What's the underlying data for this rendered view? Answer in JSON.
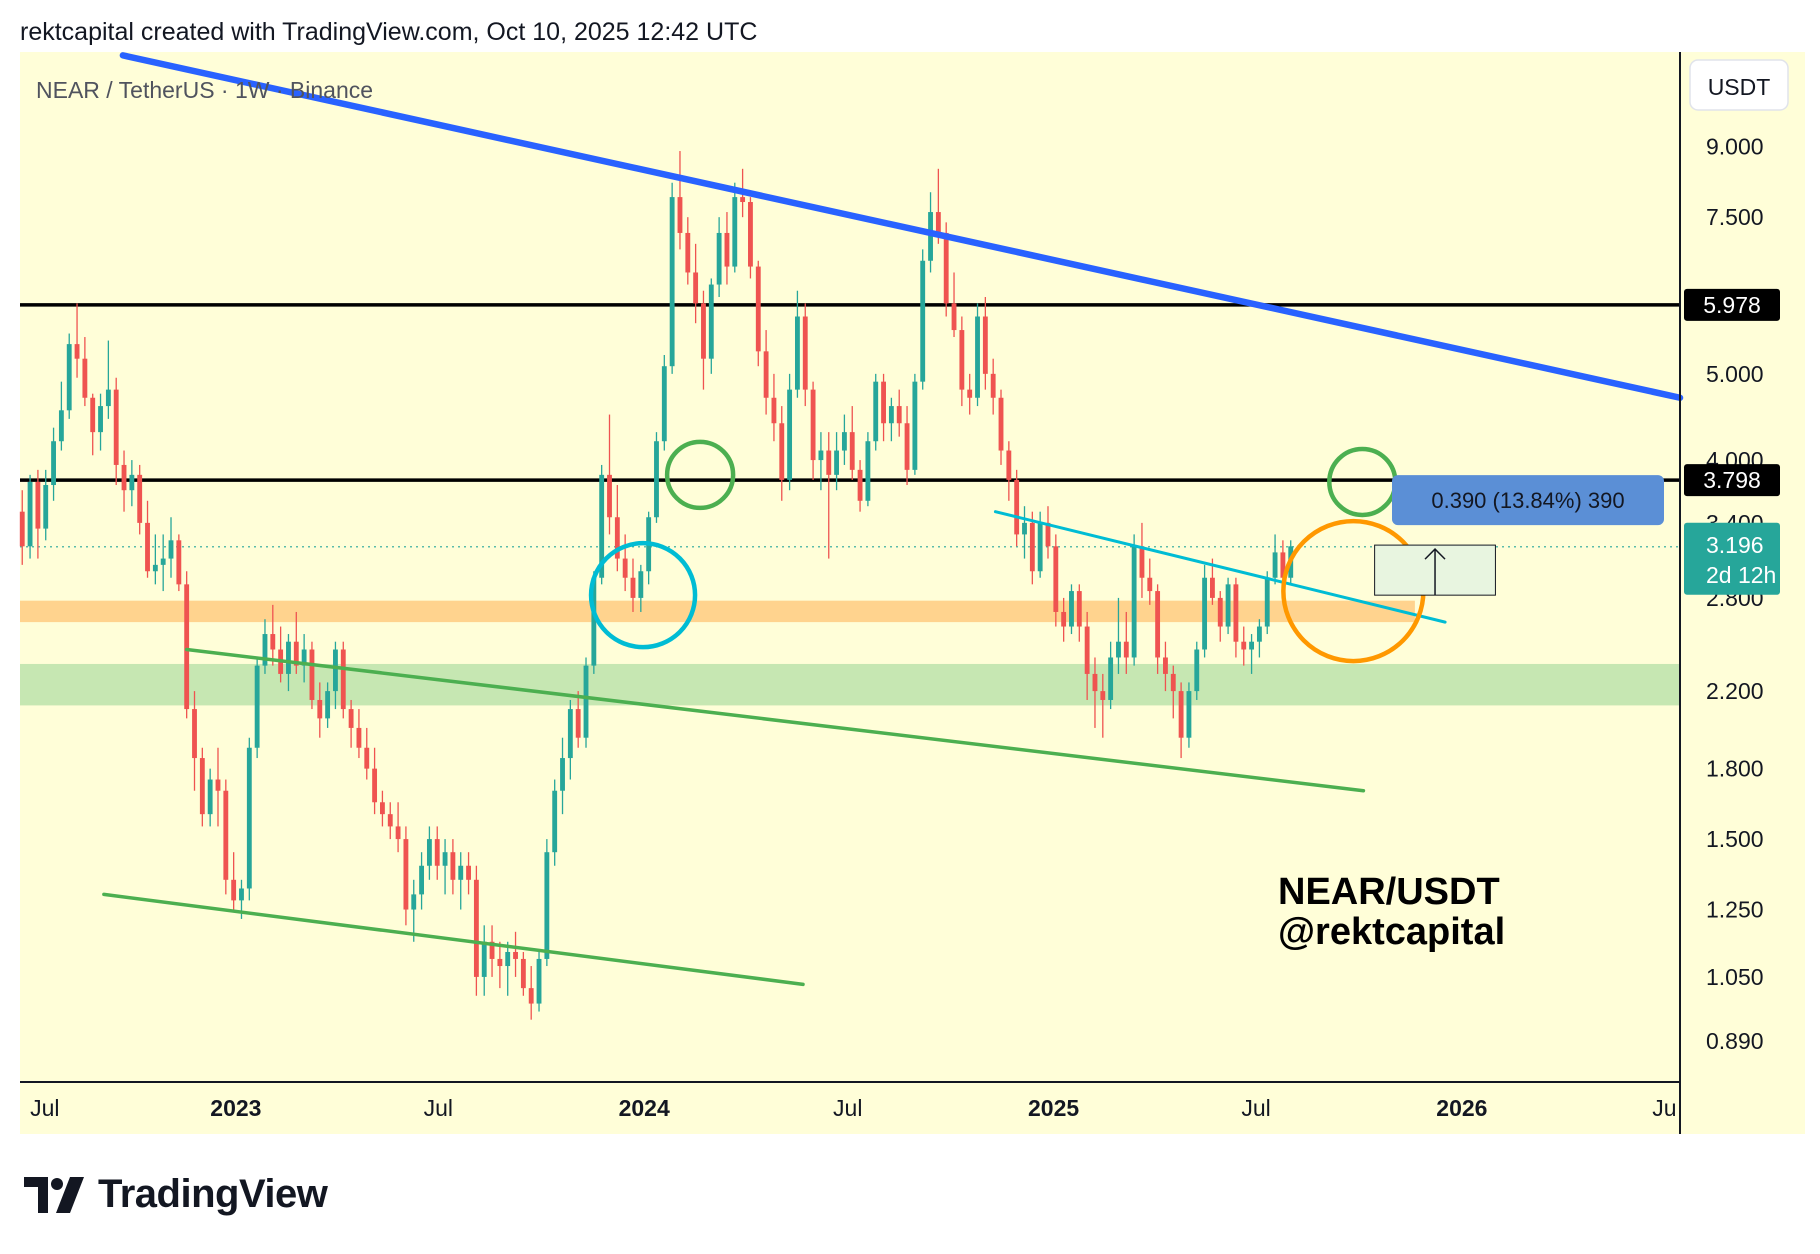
{
  "header": {
    "attribution": "rektcapital created with TradingView.com, Oct 10, 2025 12:42 UTC"
  },
  "footer": {
    "brand": "TradingView"
  },
  "colors": {
    "background": "#fffed8",
    "up_candle": "#26a69a",
    "down_candle": "#ef5350",
    "upper_trendline": "#2962ff",
    "lower_channel": "#4caf50",
    "cyan_trendline": "#00bcd4",
    "orange_zone": "#ffd18a",
    "green_zone": "#c3e6b0",
    "circle_cyan": "#00bcd4",
    "circle_green": "#4caf50",
    "circle_orange": "#ff9800",
    "measure_label": "#5b8fd6",
    "price_badge": "#26a69a"
  },
  "chart_data": {
    "type": "candlestick",
    "symbol_label": "NEAR / TetherUS · 1W · Binance",
    "currency_label": "USDT",
    "watermark": [
      "NEAR/USDT",
      "@rektcapital"
    ],
    "y_scale": "log",
    "ylim": [
      0.8,
      11.5
    ],
    "y_ticks": [
      "9.000",
      "7.500",
      "5.000",
      "4.000",
      "3.400",
      "2.800",
      "2.200",
      "1.800",
      "1.500",
      "1.250",
      "1.050",
      "0.890"
    ],
    "x_ticks": [
      "Jul",
      "2023",
      "Jul",
      "2024",
      "Jul",
      "2025",
      "Jul",
      "2026",
      "Ju"
    ],
    "x_tick_dates": [
      "2022-07-01",
      "2023-01-01",
      "2023-07-01",
      "2024-01-01",
      "2024-07-01",
      "2025-01-01",
      "2025-07-01",
      "2026-01-01",
      "2026-07-01"
    ],
    "xlim": [
      "2022-06-22",
      "2026-07-15"
    ],
    "horizontal_levels": [
      {
        "value": 5.978,
        "label": "5.978"
      },
      {
        "value": 3.798,
        "label": "3.798"
      }
    ],
    "zones": [
      {
        "name": "orange",
        "from": 2.63,
        "to": 2.78,
        "x_end": "2025-11-20"
      },
      {
        "name": "green",
        "from": 2.12,
        "to": 2.36
      }
    ],
    "trendlines": [
      {
        "name": "upper-descending",
        "points": [
          [
            "2022-09-22",
            11.4
          ],
          [
            "2026-07-15",
            4.7
          ]
        ]
      },
      {
        "name": "channel-lower-1",
        "points": [
          [
            "2022-11-18",
            2.45
          ],
          [
            "2025-10-05",
            1.7
          ]
        ]
      },
      {
        "name": "channel-lower-2",
        "points": [
          [
            "2022-09-05",
            1.3
          ],
          [
            "2024-05-22",
            1.03
          ]
        ]
      },
      {
        "name": "cyan-descending",
        "points": [
          [
            "2024-11-10",
            3.5
          ],
          [
            "2025-12-17",
            2.63
          ]
        ]
      }
    ],
    "circles": [
      {
        "name": "cyan",
        "center": [
          "2023-12-31",
          2.82
        ]
      },
      {
        "name": "green-left",
        "center": [
          "2024-02-20",
          3.85
        ]
      },
      {
        "name": "green-right",
        "center": [
          "2025-10-04",
          3.78
        ]
      },
      {
        "name": "orange",
        "center": [
          "2025-09-26",
          2.85
        ]
      }
    ],
    "measure": {
      "label": "0.390 (13.84%) 390",
      "from_date": "2025-10-15",
      "to_date": "2026-01-31",
      "low": 2.82,
      "high": 3.21
    },
    "last_price": {
      "value": 3.196,
      "label": "3.196",
      "countdown": "2d 12h"
    },
    "candles_start_date": "2022-06-24",
    "candles_ohlc": [
      [
        3.5,
        3.7,
        3.05,
        3.2
      ],
      [
        3.2,
        3.85,
        3.1,
        3.78
      ],
      [
        3.78,
        3.9,
        3.1,
        3.35
      ],
      [
        3.35,
        3.9,
        3.25,
        3.75
      ],
      [
        3.75,
        4.35,
        3.6,
        4.2
      ],
      [
        4.2,
        4.9,
        4.1,
        4.55
      ],
      [
        4.55,
        5.55,
        4.45,
        5.4
      ],
      [
        5.4,
        6.0,
        4.95,
        5.2
      ],
      [
        5.2,
        5.5,
        4.6,
        4.7
      ],
      [
        4.7,
        4.75,
        4.05,
        4.3
      ],
      [
        4.3,
        4.75,
        4.1,
        4.6
      ],
      [
        4.6,
        5.45,
        4.45,
        4.8
      ],
      [
        4.8,
        4.95,
        3.75,
        3.95
      ],
      [
        3.95,
        4.1,
        3.5,
        3.7
      ],
      [
        3.7,
        4.0,
        3.55,
        3.85
      ],
      [
        3.85,
        3.95,
        3.3,
        3.4
      ],
      [
        3.4,
        3.6,
        2.95,
        3.0
      ],
      [
        3.0,
        3.3,
        2.9,
        3.05
      ],
      [
        3.05,
        3.3,
        2.85,
        3.1
      ],
      [
        3.1,
        3.45,
        2.95,
        3.25
      ],
      [
        3.25,
        3.3,
        2.85,
        2.9
      ],
      [
        2.9,
        3.0,
        2.05,
        2.1
      ],
      [
        2.1,
        2.2,
        1.7,
        1.85
      ],
      [
        1.85,
        1.9,
        1.55,
        1.6
      ],
      [
        1.6,
        1.8,
        1.55,
        1.75
      ],
      [
        1.75,
        1.9,
        1.55,
        1.7
      ],
      [
        1.7,
        1.75,
        1.3,
        1.35
      ],
      [
        1.35,
        1.45,
        1.25,
        1.28
      ],
      [
        1.28,
        1.35,
        1.22,
        1.32
      ],
      [
        1.32,
        1.95,
        1.28,
        1.9
      ],
      [
        1.9,
        2.4,
        1.85,
        2.35
      ],
      [
        2.35,
        2.65,
        2.3,
        2.55
      ],
      [
        2.55,
        2.75,
        2.35,
        2.45
      ],
      [
        2.45,
        2.6,
        2.25,
        2.3
      ],
      [
        2.3,
        2.55,
        2.2,
        2.5
      ],
      [
        2.5,
        2.7,
        2.3,
        2.35
      ],
      [
        2.35,
        2.55,
        2.25,
        2.45
      ],
      [
        2.45,
        2.5,
        2.1,
        2.15
      ],
      [
        2.15,
        2.25,
        1.95,
        2.05
      ],
      [
        2.05,
        2.25,
        2.0,
        2.2
      ],
      [
        2.2,
        2.5,
        2.1,
        2.45
      ],
      [
        2.45,
        2.5,
        2.05,
        2.1
      ],
      [
        2.1,
        2.15,
        1.9,
        2.0
      ],
      [
        2.0,
        2.1,
        1.85,
        1.9
      ],
      [
        1.9,
        2.0,
        1.75,
        1.8
      ],
      [
        1.8,
        1.9,
        1.6,
        1.65
      ],
      [
        1.65,
        1.7,
        1.55,
        1.6
      ],
      [
        1.6,
        1.65,
        1.5,
        1.55
      ],
      [
        1.55,
        1.65,
        1.45,
        1.5
      ],
      [
        1.5,
        1.55,
        1.2,
        1.25
      ],
      [
        1.25,
        1.35,
        1.15,
        1.3
      ],
      [
        1.3,
        1.45,
        1.25,
        1.4
      ],
      [
        1.4,
        1.55,
        1.35,
        1.5
      ],
      [
        1.5,
        1.55,
        1.35,
        1.4
      ],
      [
        1.4,
        1.5,
        1.3,
        1.45
      ],
      [
        1.45,
        1.5,
        1.3,
        1.35
      ],
      [
        1.35,
        1.45,
        1.25,
        1.4
      ],
      [
        1.4,
        1.45,
        1.3,
        1.35
      ],
      [
        1.35,
        1.4,
        1.0,
        1.05
      ],
      [
        1.05,
        1.2,
        1.0,
        1.15
      ],
      [
        1.15,
        1.2,
        1.05,
        1.1
      ],
      [
        1.1,
        1.15,
        1.02,
        1.08
      ],
      [
        1.08,
        1.15,
        1.0,
        1.12
      ],
      [
        1.12,
        1.18,
        1.05,
        1.1
      ],
      [
        1.1,
        1.12,
        1.0,
        1.02
      ],
      [
        1.02,
        1.08,
        0.94,
        0.98
      ],
      [
        0.98,
        1.12,
        0.96,
        1.1
      ],
      [
        1.1,
        1.5,
        1.08,
        1.45
      ],
      [
        1.45,
        1.75,
        1.4,
        1.7
      ],
      [
        1.7,
        1.95,
        1.6,
        1.85
      ],
      [
        1.85,
        2.15,
        1.75,
        2.1
      ],
      [
        2.1,
        2.2,
        1.9,
        1.95
      ],
      [
        1.95,
        2.4,
        1.9,
        2.35
      ],
      [
        2.35,
        3.0,
        2.3,
        2.95
      ],
      [
        2.95,
        3.95,
        2.9,
        3.85
      ],
      [
        3.85,
        4.5,
        3.3,
        3.45
      ],
      [
        3.45,
        3.75,
        3.0,
        3.1
      ],
      [
        3.1,
        3.3,
        2.85,
        2.95
      ],
      [
        2.95,
        3.1,
        2.7,
        2.8
      ],
      [
        2.8,
        3.05,
        2.7,
        3.0
      ],
      [
        3.0,
        3.5,
        2.9,
        3.45
      ],
      [
        3.45,
        4.3,
        3.4,
        4.2
      ],
      [
        4.2,
        5.25,
        4.1,
        5.1
      ],
      [
        5.1,
        8.2,
        5.0,
        7.9
      ],
      [
        7.9,
        8.9,
        6.9,
        7.2
      ],
      [
        7.2,
        7.5,
        6.3,
        6.5
      ],
      [
        6.5,
        7.0,
        5.7,
        6.0
      ],
      [
        6.0,
        6.2,
        4.8,
        5.2
      ],
      [
        5.2,
        6.4,
        5.0,
        6.3
      ],
      [
        6.3,
        7.5,
        6.1,
        7.2
      ],
      [
        7.2,
        7.6,
        6.3,
        6.6
      ],
      [
        6.6,
        8.2,
        6.5,
        7.9
      ],
      [
        7.9,
        8.5,
        7.5,
        7.8
      ],
      [
        7.8,
        7.9,
        6.4,
        6.6
      ],
      [
        6.6,
        6.7,
        5.1,
        5.3
      ],
      [
        5.3,
        5.6,
        4.5,
        4.7
      ],
      [
        4.7,
        5.0,
        4.2,
        4.4
      ],
      [
        4.4,
        4.6,
        3.6,
        3.8
      ],
      [
        3.8,
        5.0,
        3.7,
        4.8
      ],
      [
        4.8,
        6.2,
        4.7,
        5.8
      ],
      [
        5.8,
        6.0,
        4.6,
        4.8
      ],
      [
        4.8,
        4.9,
        3.8,
        4.0
      ],
      [
        4.0,
        4.3,
        3.7,
        4.1
      ],
      [
        4.1,
        4.3,
        3.1,
        3.85
      ],
      [
        3.85,
        4.3,
        3.7,
        4.1
      ],
      [
        4.1,
        4.5,
        3.95,
        4.3
      ],
      [
        4.3,
        4.6,
        3.8,
        3.9
      ],
      [
        3.9,
        4.0,
        3.5,
        3.6
      ],
      [
        3.6,
        4.3,
        3.55,
        4.2
      ],
      [
        4.2,
        5.0,
        4.1,
        4.9
      ],
      [
        4.9,
        5.0,
        4.2,
        4.4
      ],
      [
        4.4,
        4.7,
        4.2,
        4.6
      ],
      [
        4.6,
        4.8,
        4.25,
        4.4
      ],
      [
        4.4,
        4.6,
        3.75,
        3.9
      ],
      [
        3.9,
        5.0,
        3.85,
        4.9
      ],
      [
        4.9,
        6.9,
        4.8,
        6.7
      ],
      [
        6.7,
        8.0,
        6.5,
        7.6
      ],
      [
        7.6,
        8.5,
        7.0,
        7.2
      ],
      [
        7.2,
        7.4,
        5.8,
        6.0
      ],
      [
        6.0,
        6.5,
        5.5,
        5.6
      ],
      [
        5.6,
        5.8,
        4.6,
        4.8
      ],
      [
        4.8,
        5.0,
        4.5,
        4.7
      ],
      [
        4.7,
        6.0,
        4.6,
        5.8
      ],
      [
        5.8,
        6.1,
        4.8,
        5.0
      ],
      [
        5.0,
        5.2,
        4.5,
        4.7
      ],
      [
        4.7,
        4.8,
        3.95,
        4.1
      ],
      [
        4.1,
        4.2,
        3.6,
        3.8
      ],
      [
        3.8,
        3.9,
        3.2,
        3.3
      ],
      [
        3.3,
        3.55,
        3.1,
        3.4
      ],
      [
        3.4,
        3.5,
        2.9,
        3.0
      ],
      [
        3.0,
        3.5,
        2.95,
        3.4
      ],
      [
        3.4,
        3.55,
        3.1,
        3.2
      ],
      [
        3.2,
        3.3,
        2.6,
        2.7
      ],
      [
        2.7,
        2.8,
        2.5,
        2.6
      ],
      [
        2.6,
        2.9,
        2.55,
        2.85
      ],
      [
        2.85,
        2.9,
        2.5,
        2.6
      ],
      [
        2.6,
        2.7,
        2.15,
        2.3
      ],
      [
        2.3,
        2.4,
        2.0,
        2.2
      ],
      [
        2.2,
        2.3,
        1.95,
        2.15
      ],
      [
        2.15,
        2.5,
        2.1,
        2.4
      ],
      [
        2.4,
        2.8,
        2.3,
        2.5
      ],
      [
        2.5,
        2.7,
        2.3,
        2.4
      ],
      [
        2.4,
        3.3,
        2.35,
        3.2
      ],
      [
        3.2,
        3.4,
        2.8,
        2.95
      ],
      [
        2.95,
        3.1,
        2.75,
        2.85
      ],
      [
        2.85,
        2.9,
        2.3,
        2.4
      ],
      [
        2.4,
        2.5,
        2.2,
        2.3
      ],
      [
        2.3,
        2.35,
        2.05,
        2.2
      ],
      [
        2.2,
        2.25,
        1.85,
        1.95
      ],
      [
        1.95,
        2.25,
        1.9,
        2.2
      ],
      [
        2.2,
        2.5,
        2.15,
        2.45
      ],
      [
        2.45,
        3.05,
        2.4,
        2.95
      ],
      [
        2.95,
        3.1,
        2.75,
        2.8
      ],
      [
        2.8,
        2.85,
        2.5,
        2.6
      ],
      [
        2.6,
        2.95,
        2.55,
        2.9
      ],
      [
        2.9,
        2.95,
        2.4,
        2.5
      ],
      [
        2.5,
        2.6,
        2.35,
        2.45
      ],
      [
        2.45,
        2.55,
        2.3,
        2.5
      ],
      [
        2.5,
        2.65,
        2.4,
        2.6
      ],
      [
        2.6,
        3.0,
        2.55,
        2.95
      ],
      [
        2.95,
        3.3,
        2.9,
        3.15
      ],
      [
        3.15,
        3.25,
        2.85,
        2.95
      ],
      [
        2.95,
        3.25,
        2.9,
        3.2
      ]
    ]
  }
}
